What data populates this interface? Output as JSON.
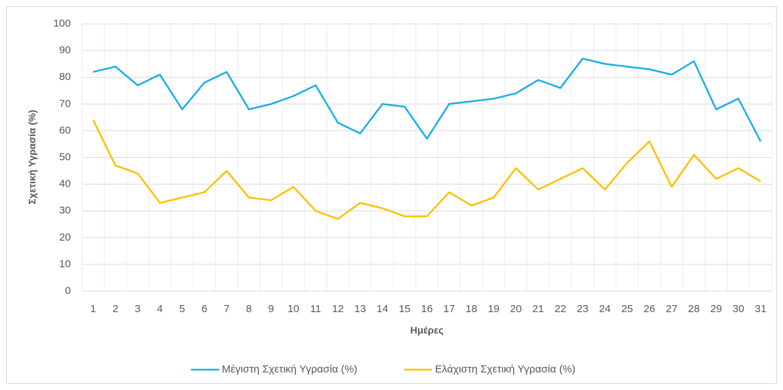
{
  "chart_data": {
    "type": "line",
    "x_label": "Ημέρες",
    "y_label": "Σχετική Υγρασία (%)",
    "categories": [
      "1",
      "2",
      "3",
      "4",
      "5",
      "6",
      "7",
      "8",
      "9",
      "10",
      "11",
      "12",
      "13",
      "14",
      "15",
      "16",
      "17",
      "18",
      "19",
      "20",
      "21",
      "22",
      "23",
      "24",
      "25",
      "26",
      "27",
      "28",
      "29",
      "30",
      "31"
    ],
    "series": [
      {
        "name": "Μέγιστη Σχετική Υγρασία (%)",
        "color": "#1AAEE8",
        "values": [
          82,
          84,
          77,
          81,
          68,
          78,
          82,
          68,
          70,
          73,
          77,
          63,
          59,
          70,
          69,
          57,
          70,
          71,
          72,
          74,
          79,
          76,
          87,
          85,
          84,
          83,
          81,
          86,
          68,
          72,
          56
        ]
      },
      {
        "name": "Ελάχιστη Σχετική Υγρασία (%)",
        "color": "#FFC000",
        "values": [
          64,
          47,
          44,
          33,
          35,
          37,
          45,
          35,
          34,
          39,
          30,
          27,
          33,
          31,
          28,
          28,
          37,
          32,
          35,
          46,
          38,
          42,
          46,
          38,
          48,
          56,
          39,
          51,
          42,
          46,
          41
        ]
      }
    ],
    "ylim": [
      0,
      100
    ],
    "yticks": [
      0,
      10,
      20,
      30,
      40,
      50,
      60,
      70,
      80,
      90,
      100
    ],
    "grid": true,
    "legend": "bottom"
  }
}
